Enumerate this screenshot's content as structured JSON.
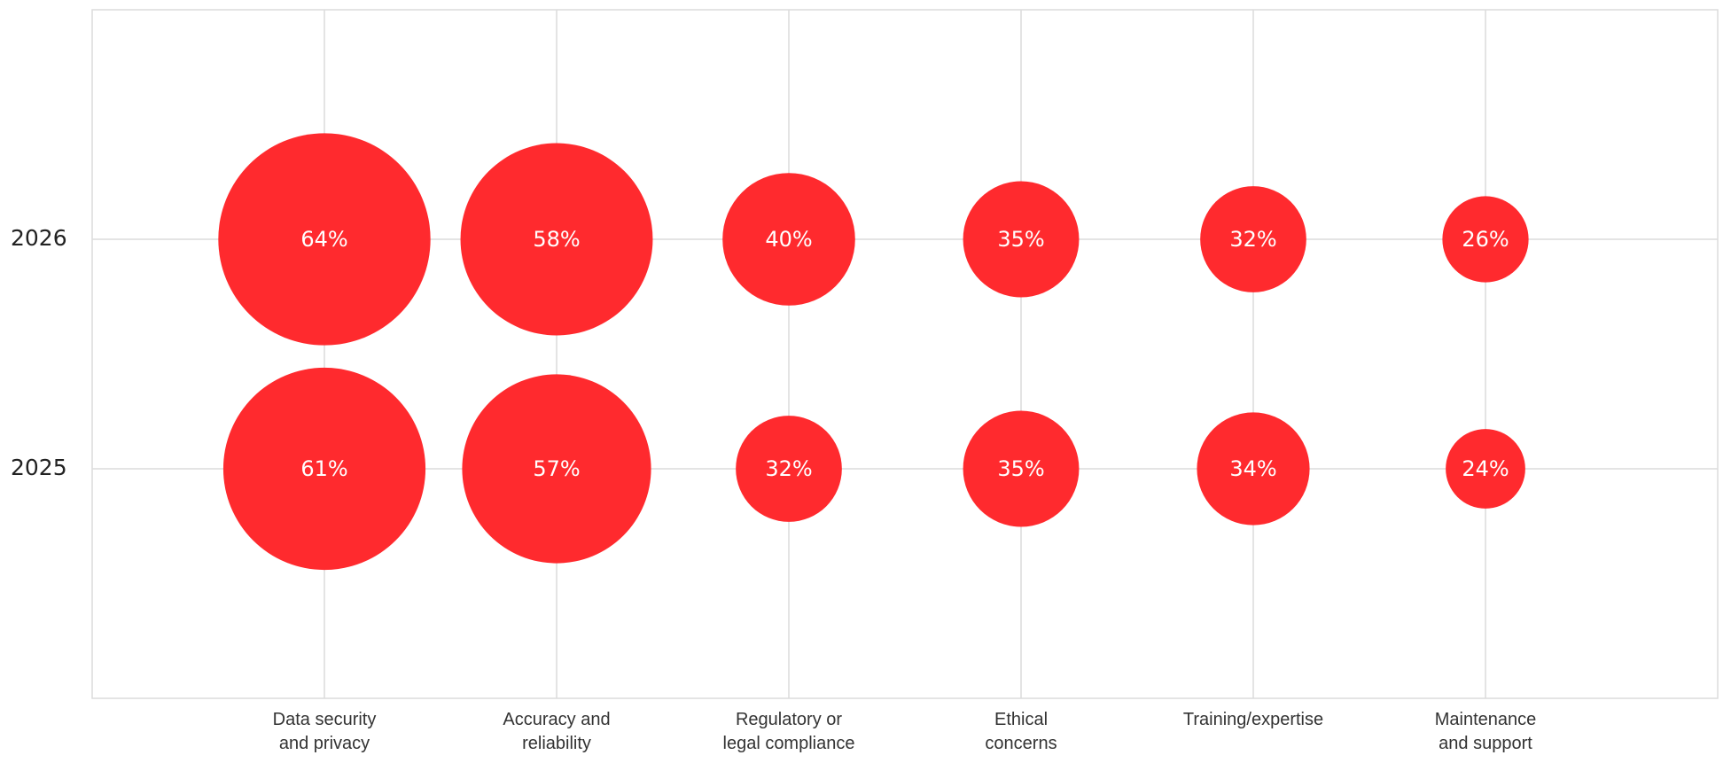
{
  "chart_data": {
    "type": "bubble",
    "categories": [
      "Data security\nand privacy",
      "Accuracy and\nreliability",
      "Regulatory or\nlegal compliance",
      "Ethical\nconcerns",
      "Training/expertise",
      "Maintenance\nand support"
    ],
    "series": [
      {
        "name": "2026",
        "color": "#ff2a2e",
        "values": [
          64,
          58,
          40,
          35,
          32,
          26
        ],
        "value_labels": [
          "64%",
          "58%",
          "40%",
          "35%",
          "32%",
          "26%"
        ]
      },
      {
        "name": "2025",
        "color": "#ff2a2e",
        "values": [
          61,
          57,
          32,
          35,
          34,
          24
        ],
        "value_labels": [
          "61%",
          "57%",
          "32%",
          "35%",
          "34%",
          "24%"
        ]
      }
    ],
    "grid": true
  }
}
